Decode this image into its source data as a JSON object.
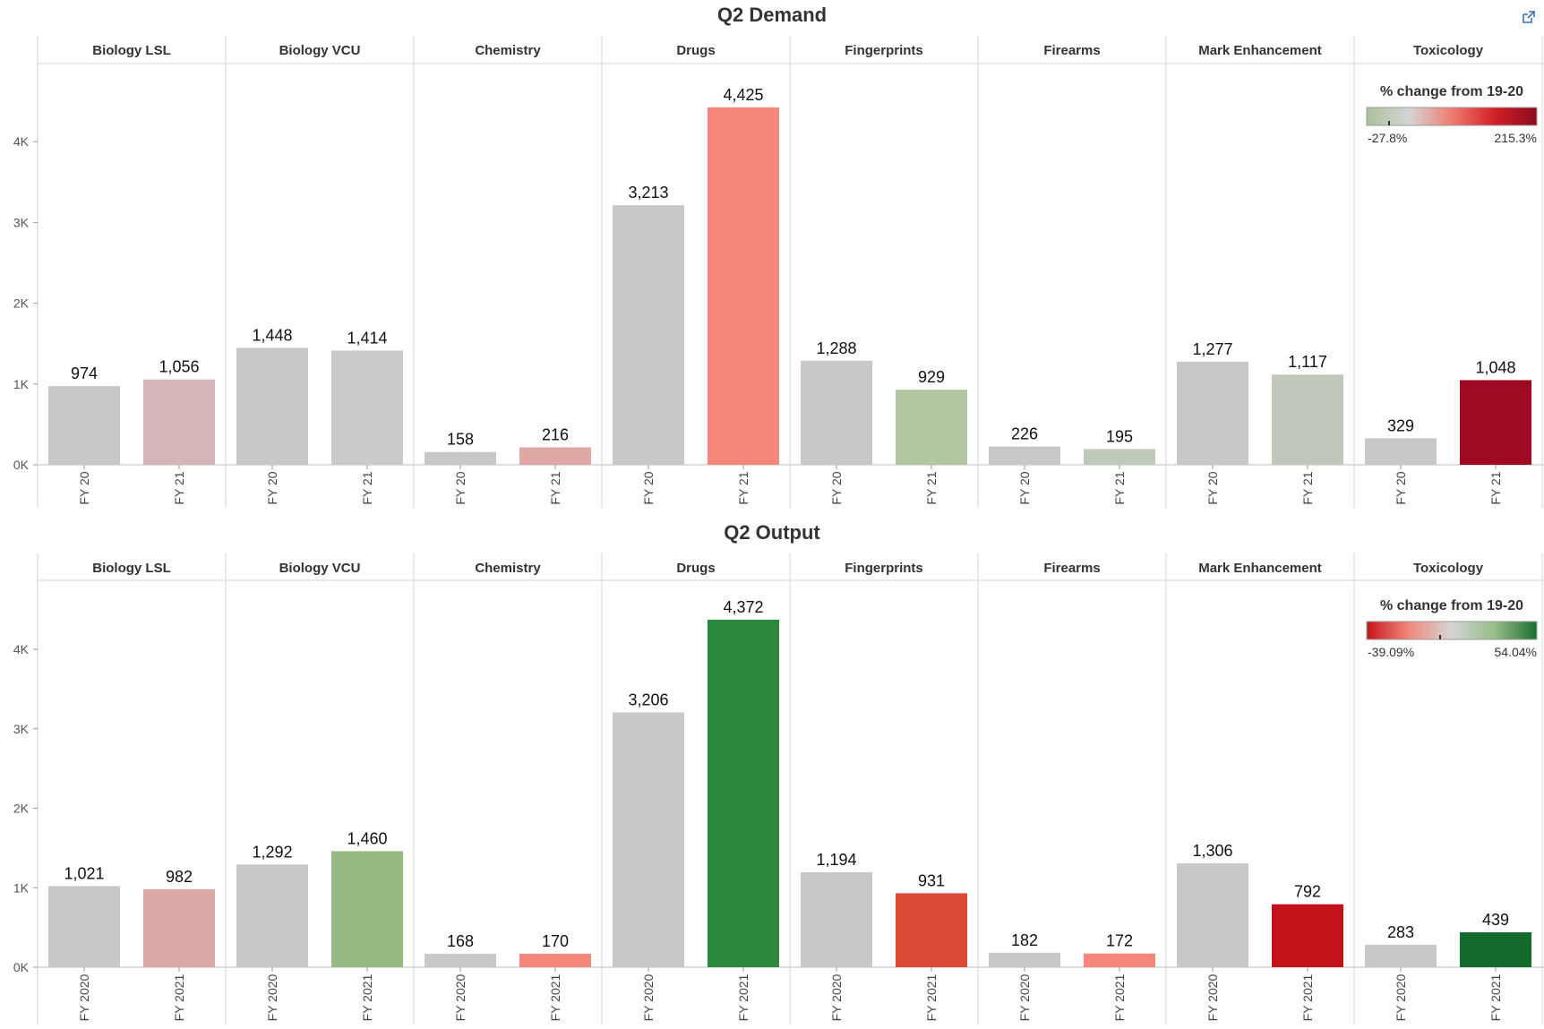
{
  "external_link_icon": "external-link-icon",
  "colors": {
    "gray": "#c8c8c8"
  },
  "chart_data": [
    {
      "type": "bar",
      "title": "Q2 Demand",
      "categories": [
        "Biology LSL",
        "Biology VCU",
        "Chemistry",
        "Drugs",
        "Fingerprints",
        "Firearms",
        "Mark Enhancement",
        "Toxicology"
      ],
      "x_labels": [
        "FY 20",
        "FY 21"
      ],
      "y_ticks": [
        "0K",
        "1K",
        "2K",
        "3K",
        "4K"
      ],
      "ylim": [
        0,
        4900
      ],
      "values": [
        [
          974,
          1056
        ],
        [
          1448,
          1414
        ],
        [
          158,
          216
        ],
        [
          3213,
          4425
        ],
        [
          1288,
          929
        ],
        [
          226,
          195
        ],
        [
          1277,
          1117
        ],
        [
          329,
          1048
        ]
      ],
      "value_labels": [
        [
          "974",
          "1,056"
        ],
        [
          "1,448",
          "1,414"
        ],
        [
          "158",
          "216"
        ],
        [
          "3,213",
          "4,425"
        ],
        [
          "1,288",
          "929"
        ],
        [
          "226",
          "195"
        ],
        [
          "1,277",
          "1,117"
        ],
        [
          "329",
          "1,048"
        ]
      ],
      "fy21_colors": [
        "#d4b5b8",
        "#cbcbcb",
        "#dfa8a4",
        "#f5887a",
        "#b1c6a1",
        "#c0cabb",
        "#c0c8bb",
        "#9e0a22"
      ],
      "legend": {
        "title": "% change from 19-20",
        "min_label": "-27.8%",
        "max_label": "215.3%",
        "gradient": [
          "#a9c19a",
          "#d5d5d5",
          "#f07c70",
          "#d21f27",
          "#8c0c20"
        ]
      }
    },
    {
      "type": "bar",
      "title": "Q2 Output",
      "categories": [
        "Biology LSL",
        "Biology VCU",
        "Chemistry",
        "Drugs",
        "Fingerprints",
        "Firearms",
        "Mark Enhancement",
        "Toxicology"
      ],
      "x_labels": [
        "FY 2020",
        "FY 2021"
      ],
      "y_ticks": [
        "0K",
        "1K",
        "2K",
        "3K",
        "4K"
      ],
      "ylim": [
        0,
        4800
      ],
      "values": [
        [
          1021,
          982
        ],
        [
          1292,
          1460
        ],
        [
          168,
          170
        ],
        [
          3206,
          4372
        ],
        [
          1194,
          931
        ],
        [
          182,
          172
        ],
        [
          1306,
          792
        ],
        [
          283,
          439
        ]
      ],
      "value_labels": [
        [
          "1,021",
          "982"
        ],
        [
          "1,292",
          "1,460"
        ],
        [
          "168",
          "170"
        ],
        [
          "3,206",
          "4,372"
        ],
        [
          "1,194",
          "931"
        ],
        [
          "182",
          "172"
        ],
        [
          "1,306",
          "792"
        ],
        [
          "283",
          "439"
        ]
      ],
      "fy21_colors": [
        "#dcaaa6",
        "#97ba82",
        "#f5887a",
        "#2b8a3e",
        "#de4a38",
        "#f5887a",
        "#c31219",
        "#146a2c"
      ],
      "legend": {
        "title": "% change from 19-20",
        "min_label": "-39.09%",
        "max_label": "54.04%",
        "gradient": [
          "#c8141c",
          "#f08a7c",
          "#d5d5d5",
          "#98bd88",
          "#1a6e30"
        ]
      }
    }
  ]
}
